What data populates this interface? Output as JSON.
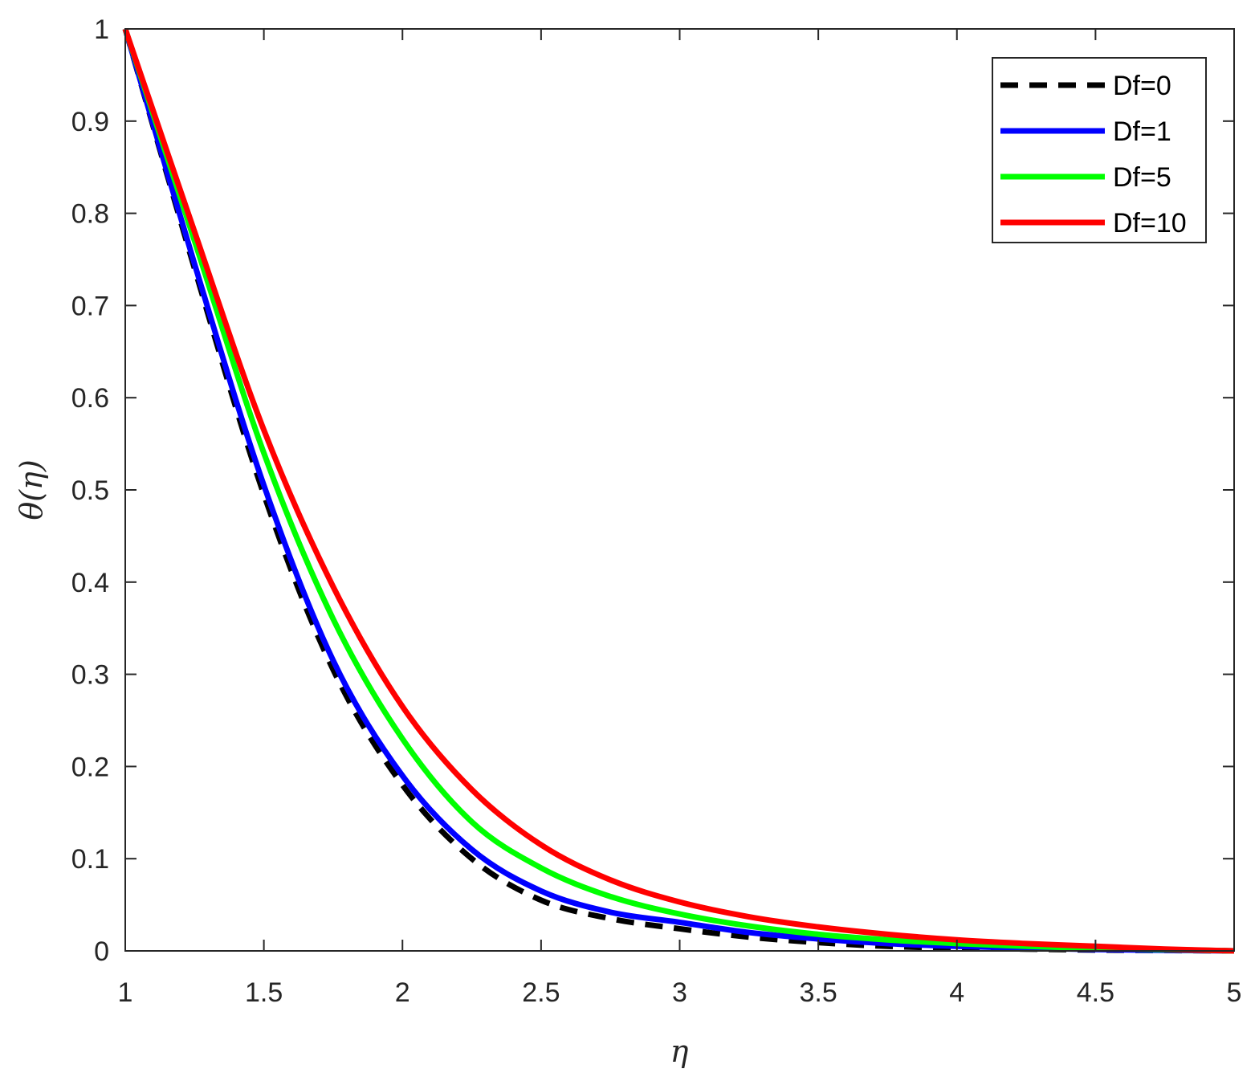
{
  "chart_data": {
    "type": "line",
    "xlabel": "η",
    "ylabel": "θ(η)",
    "xlim": [
      1,
      5
    ],
    "ylim": [
      0,
      1
    ],
    "xticks": [
      1,
      1.5,
      2,
      2.5,
      3,
      3.5,
      4,
      4.5,
      5
    ],
    "xtick_labels": [
      "1",
      "1.5",
      "2",
      "2.5",
      "3",
      "3.5",
      "4",
      "4.5",
      "5"
    ],
    "yticks": [
      0,
      0.1,
      0.2,
      0.3,
      0.4,
      0.5,
      0.6,
      0.7,
      0.8,
      0.9,
      1
    ],
    "ytick_labels": [
      "0",
      "0.1",
      "0.2",
      "0.3",
      "0.4",
      "0.5",
      "0.6",
      "0.7",
      "0.8",
      "0.9",
      "1"
    ],
    "grid": false,
    "legend_position": "top-right",
    "series": [
      {
        "name": "Df=0",
        "color": "#000000",
        "dashed": true,
        "x": [
          1,
          1.25,
          1.5,
          1.75,
          2,
          2.25,
          2.5,
          2.75,
          3,
          3.25,
          3.5,
          3.75,
          4,
          4.25,
          4.5,
          4.75,
          5
        ],
        "y": [
          1,
          0.74,
          0.495,
          0.305,
          0.18,
          0.1,
          0.055,
          0.035,
          0.024,
          0.015,
          0.009,
          0.005,
          0.003,
          0.002,
          0.001,
          0.0005,
          0
        ]
      },
      {
        "name": "Df=1",
        "color": "#0000ff",
        "dashed": false,
        "x": [
          1,
          1.25,
          1.5,
          1.75,
          2,
          2.25,
          2.5,
          2.75,
          3,
          3.25,
          3.5,
          3.75,
          4,
          4.25,
          4.5,
          4.75,
          5
        ],
        "y": [
          1,
          0.745,
          0.505,
          0.315,
          0.19,
          0.11,
          0.065,
          0.042,
          0.031,
          0.02,
          0.013,
          0.008,
          0.005,
          0.003,
          0.0015,
          0.0007,
          0
        ]
      },
      {
        "name": "Df=5",
        "color": "#00ff00",
        "dashed": false,
        "x": [
          1,
          1.25,
          1.5,
          1.75,
          2,
          2.25,
          2.5,
          2.75,
          3,
          3.25,
          3.5,
          3.75,
          4,
          4.25,
          4.5,
          4.75,
          5
        ],
        "y": [
          1,
          0.77,
          0.54,
          0.36,
          0.23,
          0.14,
          0.09,
          0.059,
          0.04,
          0.027,
          0.018,
          0.012,
          0.008,
          0.005,
          0.003,
          0.0015,
          0
        ]
      },
      {
        "name": "Df=10",
        "color": "#ff0000",
        "dashed": false,
        "x": [
          1,
          1.25,
          1.5,
          1.75,
          2,
          2.25,
          2.5,
          2.75,
          3,
          3.25,
          3.5,
          3.75,
          4,
          4.25,
          4.5,
          4.75,
          5
        ],
        "y": [
          1,
          0.78,
          0.565,
          0.395,
          0.265,
          0.175,
          0.115,
          0.077,
          0.053,
          0.037,
          0.026,
          0.018,
          0.012,
          0.008,
          0.005,
          0.002,
          0
        ]
      }
    ]
  }
}
